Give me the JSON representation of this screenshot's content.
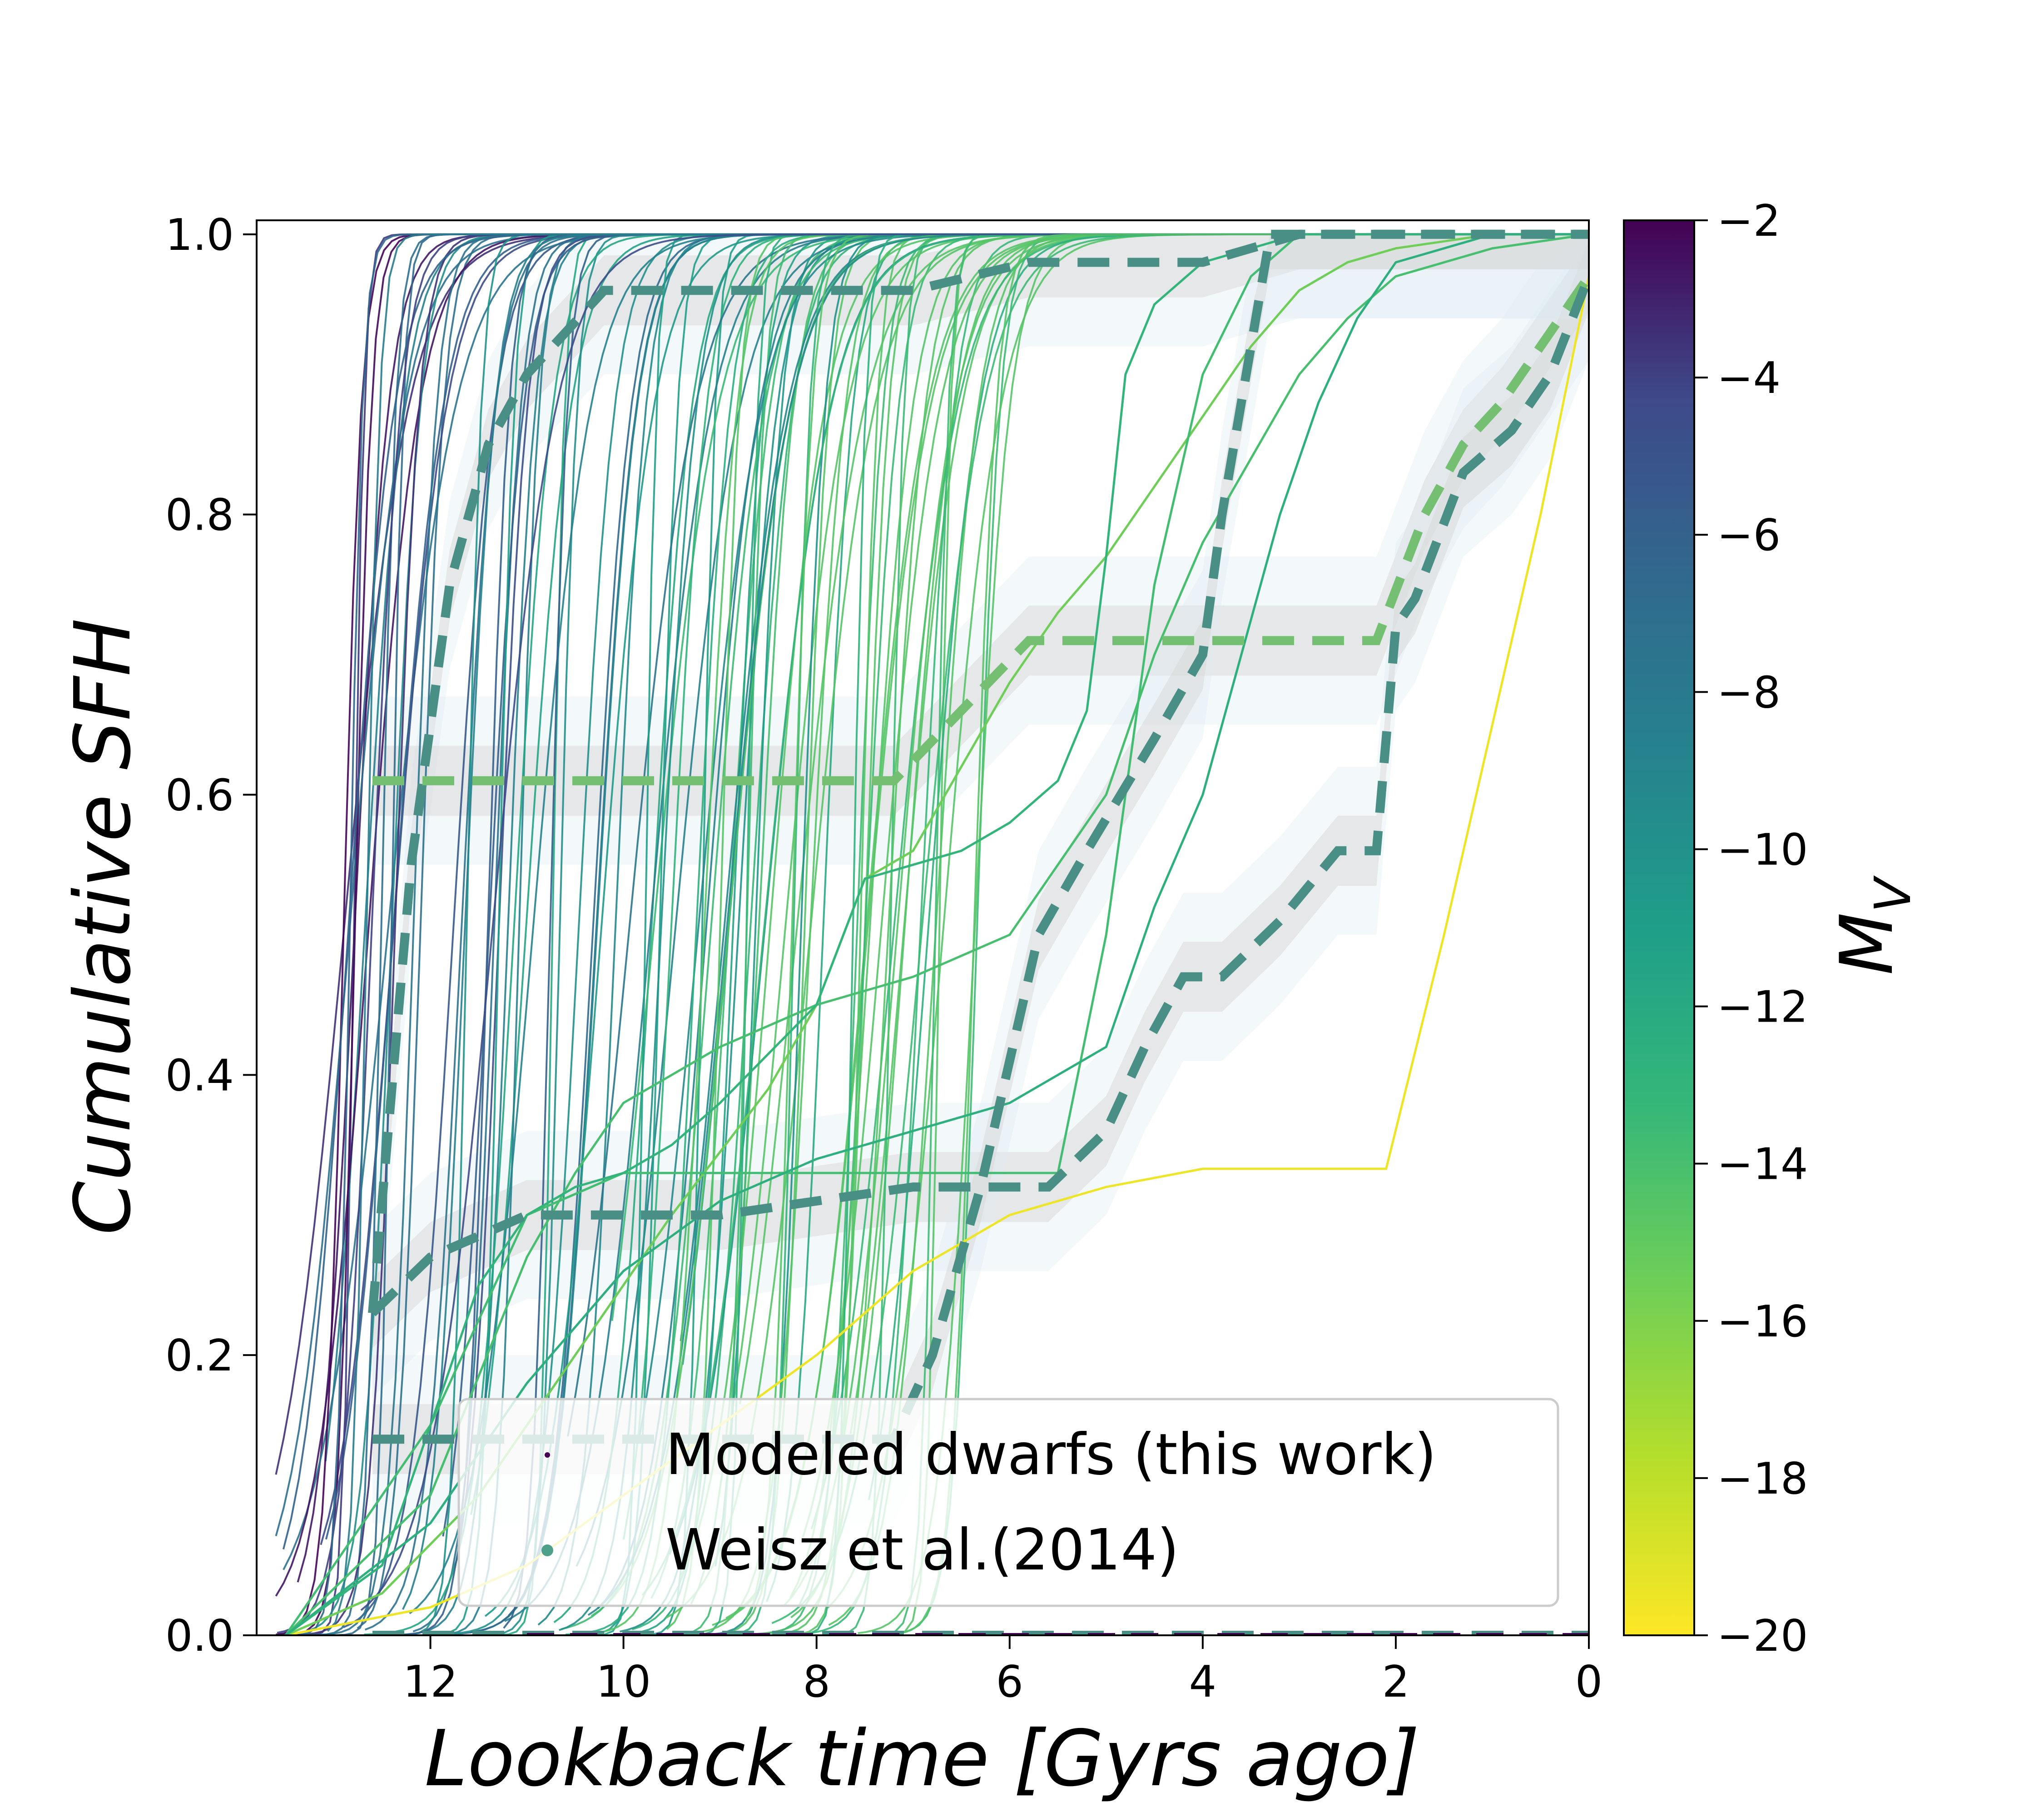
{
  "chart_data": {
    "type": "line",
    "xlabel": "Lookback time [Gyrs ago]",
    "ylabel": "Cumulative SFH",
    "x_ticks": [
      "12",
      "10",
      "8",
      "6",
      "4",
      "2",
      "0"
    ],
    "y_ticks": [
      "0.0",
      "0.2",
      "0.4",
      "0.6",
      "0.8",
      "1.0"
    ],
    "xlim": [
      13.8,
      0
    ],
    "ylim": [
      0,
      1.01
    ],
    "x_reversed": true,
    "grid": false,
    "colormap": "viridis",
    "colorbar": {
      "label": "M_V",
      "label_main": "M",
      "label_sub": "V",
      "range": [
        -20,
        -2
      ],
      "ticks": [
        "−2",
        "−4",
        "−6",
        "−8",
        "−10",
        "−12",
        "−14",
        "−16",
        "−18",
        "−20"
      ]
    },
    "legend": {
      "placement": "lower-right",
      "entries": [
        {
          "label": "Modeled dwarfs (this work)",
          "color": "#440154",
          "marker": "small-dot"
        },
        {
          "label": "Weisz et al.(2014)",
          "color": "#4fa08b",
          "marker": "dot"
        }
      ]
    },
    "colors": {
      "gray_band": "#d9d9d9",
      "blue_band": "#ddeaf4",
      "line_dark": "#4a8f86",
      "line_green": "#74bf72",
      "line_yellow": "#e8e23a"
    },
    "weisz_series": [
      {
        "mv": -11.3,
        "x": [
          12.6,
          12.2,
          11.8,
          11.4,
          11.0,
          10.6,
          10.2,
          9.8,
          9.0,
          7.0,
          5.8,
          4.0,
          3.5,
          3.0,
          0.0
        ],
        "y": [
          0.23,
          0.55,
          0.75,
          0.85,
          0.9,
          0.93,
          0.96,
          0.96,
          0.96,
          0.96,
          0.98,
          0.98,
          0.99,
          1.0,
          1.0
        ]
      },
      {
        "mv": -14.5,
        "x": [
          12.6,
          7.2,
          5.8,
          2.2,
          1.7,
          1.3,
          0.9,
          0.5,
          0.0
        ],
        "y": [
          0.61,
          0.61,
          0.71,
          0.71,
          0.8,
          0.85,
          0.88,
          0.92,
          0.97
        ]
      },
      {
        "mv": -11.3,
        "x": [
          12.6,
          12.0,
          11.0,
          9.0,
          7.0,
          5.6,
          5.0,
          4.6,
          4.2,
          3.8,
          3.2,
          2.6,
          2.2,
          2.0,
          1.8,
          1.3,
          0.8,
          0.4,
          0.0
        ],
        "y": [
          0.23,
          0.27,
          0.3,
          0.3,
          0.32,
          0.32,
          0.36,
          0.42,
          0.47,
          0.47,
          0.51,
          0.56,
          0.56,
          0.72,
          0.74,
          0.83,
          0.86,
          0.9,
          0.97
        ]
      },
      {
        "mv": -11.0,
        "x": [
          12.6,
          7.2,
          6.8,
          6.3,
          5.7,
          5.2,
          4.5,
          4.0,
          3.8,
          3.5,
          3.3,
          3.0,
          2.5,
          0.0
        ],
        "y": [
          0.14,
          0.14,
          0.2,
          0.32,
          0.5,
          0.56,
          0.64,
          0.7,
          0.8,
          0.92,
          1.0,
          1.0,
          1.0,
          1.0
        ]
      },
      {
        "mv": -10.5,
        "x": [
          12.6,
          0.0
        ],
        "y": [
          0.0,
          0.0
        ]
      }
    ],
    "modeled_floor": {
      "x": [
        11.0,
        0.0
      ],
      "y": [
        0.0,
        0.0
      ],
      "color": "#440154"
    },
    "featured_model_lines": [
      {
        "mv": -19.5,
        "x": [
          13.5,
          12.0,
          11.0,
          10.0,
          9.0,
          8.0,
          7.0,
          6.0,
          5.0,
          4.0,
          3.0,
          2.1,
          1.5,
          1.0,
          0.5,
          0.0
        ],
        "y": [
          0.0,
          0.02,
          0.05,
          0.1,
          0.15,
          0.2,
          0.26,
          0.3,
          0.32,
          0.333,
          0.333,
          0.333,
          0.5,
          0.65,
          0.8,
          0.97
        ]
      },
      {
        "mv": -15.5,
        "x": [
          13.5,
          12.5,
          11.5,
          10.5,
          9.5,
          8.5,
          8.0,
          7.5,
          7.0,
          6.5,
          6.0,
          5.5,
          5.0,
          4.5,
          4.0,
          3.5,
          3.0,
          2.5,
          2.0,
          1.0,
          0.0
        ],
        "y": [
          0.0,
          0.03,
          0.1,
          0.2,
          0.3,
          0.39,
          0.45,
          0.54,
          0.56,
          0.62,
          0.68,
          0.73,
          0.77,
          0.82,
          0.87,
          0.92,
          0.96,
          0.98,
          0.99,
          1.0,
          1.0
        ]
      },
      {
        "mv": -14.0,
        "x": [
          13.5,
          12.0,
          11.0,
          10.5,
          10.0,
          9.0,
          8.0,
          7.0,
          6.0,
          5.0,
          4.5,
          4.0,
          3.5,
          3.0,
          2.5,
          2.0,
          1.0,
          0.0
        ],
        "y": [
          0.0,
          0.1,
          0.27,
          0.33,
          0.38,
          0.42,
          0.45,
          0.47,
          0.5,
          0.6,
          0.7,
          0.78,
          0.84,
          0.9,
          0.94,
          0.97,
          0.99,
          1.0
        ]
      },
      {
        "mv": -13.8,
        "x": [
          13.5,
          12.0,
          11.0,
          10.0,
          9.0,
          8.0,
          7.0,
          6.0,
          5.5,
          5.0,
          4.5,
          4.0,
          3.5,
          3.0,
          2.5,
          0.0
        ],
        "y": [
          0.0,
          0.15,
          0.3,
          0.33,
          0.33,
          0.33,
          0.33,
          0.33,
          0.33,
          0.5,
          0.75,
          0.9,
          0.97,
          1.0,
          1.0,
          1.0
        ]
      },
      {
        "mv": -13.0,
        "x": [
          13.5,
          12.5,
          12.0,
          11.5,
          11.0,
          10.5,
          10.0,
          9.5,
          9.0,
          8.0,
          7.5,
          7.0,
          6.5,
          6.0,
          5.5,
          5.2,
          5.0,
          4.8,
          4.5,
          4.0,
          3.5,
          3.0,
          2.5,
          2.0,
          1.5,
          0.0
        ],
        "y": [
          0.0,
          0.05,
          0.15,
          0.25,
          0.3,
          0.32,
          0.33,
          0.35,
          0.38,
          0.45,
          0.54,
          0.55,
          0.56,
          0.58,
          0.61,
          0.66,
          0.77,
          0.9,
          0.95,
          0.98,
          0.99,
          1.0,
          1.0,
          1.0,
          1.0,
          1.0
        ]
      },
      {
        "mv": -12.5,
        "x": [
          13.5,
          12.0,
          11.0,
          10.0,
          9.0,
          8.0,
          7.0,
          6.0,
          5.0,
          4.5,
          4.0,
          3.6,
          3.2,
          2.8,
          2.4,
          2.0,
          1.5,
          1.0,
          0.0
        ],
        "y": [
          0.0,
          0.08,
          0.18,
          0.26,
          0.31,
          0.34,
          0.36,
          0.38,
          0.42,
          0.52,
          0.6,
          0.7,
          0.8,
          0.88,
          0.94,
          0.98,
          0.99,
          1.0,
          1.0
        ]
      }
    ]
  }
}
